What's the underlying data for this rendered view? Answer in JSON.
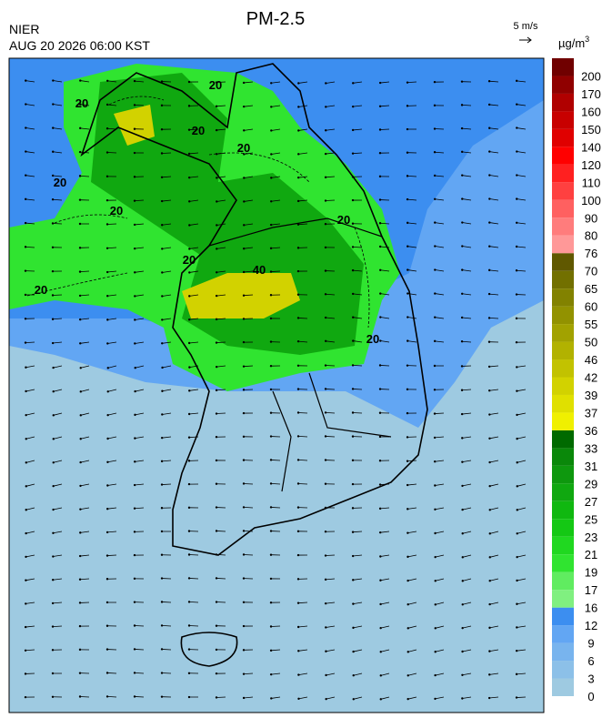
{
  "title": "PM-2.5",
  "agency": "NIER",
  "timestamp": "AUG 20 2026 06:00 KST",
  "wind_scale": "5 m/s",
  "unit": {
    "base": "µg/m",
    "sup": "3"
  },
  "colorbar": {
    "labels": [
      0,
      3,
      6,
      9,
      12,
      16,
      17,
      19,
      21,
      23,
      25,
      27,
      29,
      31,
      33,
      36,
      37,
      39,
      42,
      46,
      50,
      55,
      60,
      65,
      70,
      76,
      80,
      90,
      100,
      110,
      120,
      140,
      150,
      160,
      170,
      200
    ],
    "colors": [
      "#9ecae1",
      "#8cc0e8",
      "#78b4ee",
      "#62a6f3",
      "#3c8ef0",
      "#80f080",
      "#60ec60",
      "#30e430",
      "#20d820",
      "#14c814",
      "#10b810",
      "#10a810",
      "#0e980e",
      "#0a880a",
      "#006a00",
      "#f0f000",
      "#e0e000",
      "#d2d200",
      "#c2c200",
      "#b2b200",
      "#a2a200",
      "#929200",
      "#828200",
      "#727000",
      "#605800",
      "#ff9898",
      "#ff7c7c",
      "#ff6060",
      "#ff4040",
      "#ff2020",
      "#ff0000",
      "#e00000",
      "#c80000",
      "#b00000",
      "#900000",
      "#700000"
    ]
  },
  "contour_labels": [
    "20",
    "20",
    "20",
    "20",
    "20",
    "20",
    "20",
    "20",
    "20",
    "20",
    "40"
  ]
}
